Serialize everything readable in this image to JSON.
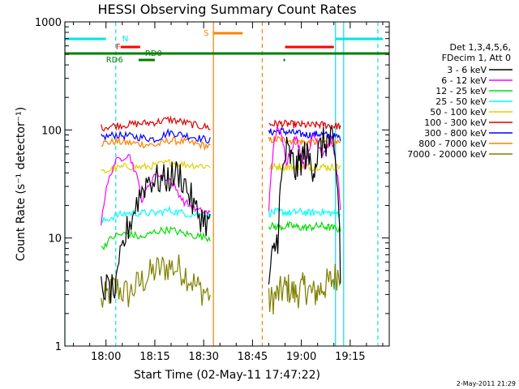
{
  "chart_data": {
    "type": "line",
    "title": "HESSI Observing Summary Count Rates",
    "xlabel": "Start Time (02-May-11 17:47:22)",
    "ylabel": "Count Rate (s⁻¹ detector⁻¹)",
    "yscale": "log",
    "xlim": [
      "17:47:22",
      "19:27:00"
    ],
    "ylim": [
      1,
      1000
    ],
    "x_ticks": [
      "18:00",
      "18:15",
      "18:30",
      "18:45",
      "19:00",
      "19:15"
    ],
    "y_ticks": [
      "1",
      "10",
      "100",
      "1000"
    ],
    "legend_header": [
      "Det 1,3,4,5,6,",
      "FDecim 1, Att 0"
    ],
    "legend_position": "right",
    "timestamp": "2-May-2011 21:29",
    "colors": {
      "saa": "#00e6e6",
      "flare": "#ff0000",
      "night": "#ff8000",
      "decim": "#008000"
    },
    "flags": {
      "N": "N",
      "F": "F",
      "S": "S",
      "RD0": "RD0",
      "RD6": "RD6"
    },
    "series": [
      {
        "name": "3 - 6 keV",
        "color": "#000000",
        "seg1": [
          3.5,
          3.2,
          16,
          35,
          34,
          40,
          18,
          13
        ],
        "seg2": [
          4,
          10,
          65,
          42,
          60,
          45,
          75,
          80,
          4.5
        ]
      },
      {
        "name": "6 - 12 keV",
        "color": "#ff00ff",
        "seg1": [
          14,
          50,
          60,
          22,
          40,
          35,
          22,
          18,
          17
        ],
        "seg2": [
          17,
          110,
          50,
          85,
          45,
          90,
          60,
          80,
          17
        ]
      },
      {
        "name": "12 - 25 keV",
        "color": "#00dd00",
        "seg1": [
          8,
          10.5,
          11,
          10,
          11.5,
          12,
          11,
          10.5,
          10
        ],
        "seg2": [
          13,
          12.5,
          13,
          12.5,
          12.5,
          13,
          12.5,
          12
        ]
      },
      {
        "name": "25 - 50 keV",
        "color": "#00ffff",
        "seg1": [
          14,
          16,
          17,
          17,
          17,
          18,
          17,
          16.5,
          16
        ],
        "seg2": [
          17,
          17.5,
          17,
          17.5,
          17,
          17.5,
          17,
          17
        ]
      },
      {
        "name": "50 - 100 keV",
        "color": "#e0d000",
        "seg1": [
          40,
          44,
          46,
          45,
          47,
          50,
          48,
          47,
          46
        ],
        "seg2": [
          45,
          46,
          45,
          46,
          45,
          46,
          45,
          46
        ]
      },
      {
        "name": "100 - 300 keV",
        "color": "#dd0000",
        "seg1": [
          105,
          110,
          112,
          115,
          118,
          125,
          118,
          110,
          105
        ],
        "seg2": [
          112,
          115,
          113,
          112,
          110,
          112,
          110,
          108
        ]
      },
      {
        "name": "300 - 800 keV",
        "color": "#0000ff",
        "seg1": [
          85,
          90,
          88,
          85,
          82,
          95,
          90,
          85,
          80
        ],
        "seg2": [
          95,
          98,
          95,
          92,
          90,
          92,
          88,
          85
        ]
      },
      {
        "name": "800 - 7000 keV",
        "color": "#ff8000",
        "seg1": [
          75,
          78,
          76,
          74,
          72,
          80,
          78,
          74,
          70
        ],
        "seg2": [
          80,
          82,
          80,
          78,
          76,
          78,
          75,
          74
        ]
      },
      {
        "name": "7000 - 20000 keV",
        "color": "#808000",
        "seg1": [
          2.5,
          3.5,
          3,
          4,
          5,
          5.5,
          5,
          3.5,
          3
        ],
        "seg2": [
          2.5,
          3,
          3.5,
          3,
          3.5,
          3,
          3.5,
          4,
          5
        ]
      }
    ],
    "segments": [
      [
        "17:58:30",
        "18:32:00"
      ],
      [
        "18:50:00",
        "19:12:00"
      ]
    ]
  }
}
